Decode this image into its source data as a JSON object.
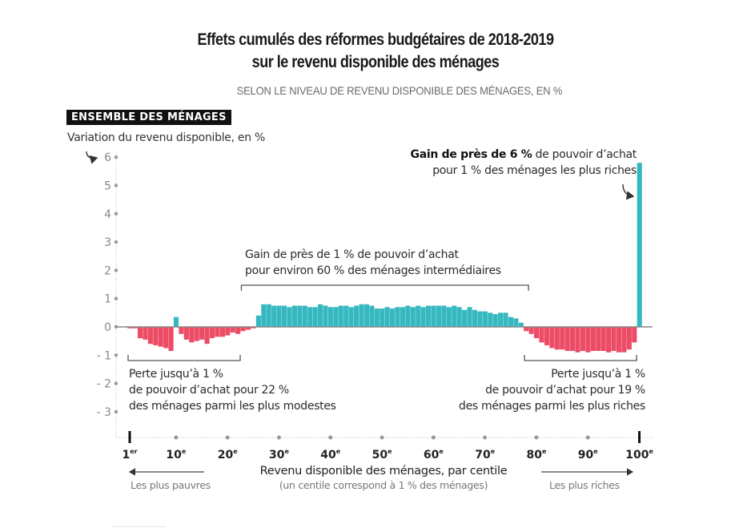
{
  "chart_data": {
    "type": "bar",
    "title": "Effets cumulés des réformes budgétaires de 2018-2019 sur le revenu disponible des ménages",
    "title_lines": [
      "Effets cumulés des réformes budgétaires de 2018-2019",
      "sur le revenu disponible des ménages"
    ],
    "subtitle": "SELON LE NIVEAU DE REVENU DISPONIBLE DES MÉNAGES, EN %",
    "panel_label": "ENSEMBLE DES MÉNAGES",
    "ylabel": "Variation du revenu disponible, en %",
    "xlabel": "Revenu disponible des ménages, par centile",
    "xlabel_note": "(un centile correspond à 1 % des ménages)",
    "x_left_hint": "Les plus pauvres",
    "x_right_hint": "Les plus riches",
    "ylim": [
      -3.5,
      6.2
    ],
    "yticks": [
      6,
      5,
      4,
      3,
      2,
      1,
      0,
      -1,
      -2,
      -3
    ],
    "ytick_labels": [
      "6",
      "5",
      "4",
      "3",
      "2",
      "1",
      "0",
      "- 1",
      "- 2",
      "- 3"
    ],
    "xticks": [
      1,
      10,
      20,
      30,
      40,
      50,
      60,
      70,
      80,
      90,
      100
    ],
    "xtick_labels": [
      {
        "num": "1",
        "sup": "er"
      },
      {
        "num": "10",
        "sup": "e"
      },
      {
        "num": "20",
        "sup": "e"
      },
      {
        "num": "30",
        "sup": "e"
      },
      {
        "num": "40",
        "sup": "e"
      },
      {
        "num": "50",
        "sup": "e"
      },
      {
        "num": "60",
        "sup": "e"
      },
      {
        "num": "70",
        "sup": "e"
      },
      {
        "num": "80",
        "sup": "e"
      },
      {
        "num": "90",
        "sup": "e"
      },
      {
        "num": "100",
        "sup": "e"
      }
    ],
    "grid": false,
    "colors": {
      "positive": "#36b8c0",
      "negative": "#ec4c66",
      "axis": "#888888",
      "zero_line": "#999999"
    },
    "categories_desc": "centiles 1 to 100",
    "values": [
      -0.05,
      -0.05,
      -0.4,
      -0.45,
      -0.6,
      -0.65,
      -0.7,
      -0.75,
      -0.85,
      0.35,
      -0.25,
      -0.45,
      -0.55,
      -0.5,
      -0.45,
      -0.6,
      -0.4,
      -0.35,
      -0.35,
      -0.3,
      -0.2,
      -0.25,
      -0.15,
      -0.1,
      -0.05,
      0.4,
      0.8,
      0.8,
      0.75,
      0.75,
      0.75,
      0.7,
      0.75,
      0.75,
      0.75,
      0.7,
      0.7,
      0.8,
      0.75,
      0.7,
      0.7,
      0.75,
      0.75,
      0.7,
      0.75,
      0.8,
      0.8,
      0.75,
      0.65,
      0.65,
      0.7,
      0.65,
      0.7,
      0.7,
      0.75,
      0.7,
      0.75,
      0.7,
      0.75,
      0.75,
      0.75,
      0.75,
      0.7,
      0.75,
      0.7,
      0.6,
      0.7,
      0.6,
      0.55,
      0.55,
      0.5,
      0.45,
      0.5,
      0.5,
      0.35,
      0.3,
      0.15,
      -0.15,
      -0.25,
      -0.4,
      -0.55,
      -0.65,
      -0.75,
      -0.8,
      -0.8,
      -0.85,
      -0.85,
      -0.9,
      -0.85,
      -0.9,
      -0.85,
      -0.85,
      -0.85,
      -0.9,
      -0.85,
      -0.9,
      -0.9,
      -0.8,
      -0.55,
      5.8
    ],
    "annotations": {
      "top_bold": "Gain de près de 6 %",
      "top_rest": " de pouvoir d’achat",
      "top_line2": "pour 1 % des ménages les plus riches",
      "mid_line1": "Gain de près de 1 % de pouvoir d’achat",
      "mid_line2": "pour environ 60 % des ménages intermédiaires",
      "left_line1": "Perte jusqu’à 1 %",
      "left_line2": "de pouvoir d’achat pour 22 %",
      "left_line3": "des ménages parmi les plus modestes",
      "right_line1": "Perte jusqu’à 1 %",
      "right_line2": "de pouvoir d’achat pour 19 %",
      "right_line3": "des ménages parmi les plus riches"
    },
    "brackets": [
      {
        "name": "bracket-poor",
        "from": 1,
        "to": 22,
        "side": "below"
      },
      {
        "name": "bracket-middle",
        "from": 23,
        "to": 78,
        "side": "above"
      },
      {
        "name": "bracket-rich",
        "from": 78,
        "to": 99,
        "side": "below"
      }
    ]
  }
}
